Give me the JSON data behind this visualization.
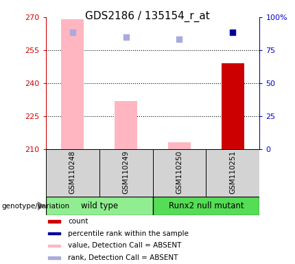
{
  "title": "GDS2186 / 135154_r_at",
  "samples": [
    "GSM110248",
    "GSM110249",
    "GSM110250",
    "GSM110251"
  ],
  "ylim_left": [
    210,
    270
  ],
  "ylim_right": [
    0,
    100
  ],
  "yticks_left": [
    210,
    225,
    240,
    255,
    270
  ],
  "yticks_right": [
    0,
    25,
    50,
    75,
    100
  ],
  "bar_values": [
    269,
    232,
    213,
    249
  ],
  "bar_colors": [
    "#FFB6C1",
    "#FFB6C1",
    "#FFB6C1",
    "#CC0000"
  ],
  "rank_sq_values": [
    263,
    261,
    260,
    263
  ],
  "rank_sq_colors": [
    "#AAAADD",
    "#AAAADD",
    "#AAAADD",
    "#000099"
  ],
  "left_axis_color": "#CC0000",
  "right_axis_color": "#0000CC",
  "grid_lines": [
    255,
    240,
    225
  ],
  "group_wt_color": "#90EE90",
  "group_rm_color": "#55DD55",
  "legend_items": [
    {
      "label": "count",
      "color": "#CC0000"
    },
    {
      "label": "percentile rank within the sample",
      "color": "#000099"
    },
    {
      "label": "value, Detection Call = ABSENT",
      "color": "#FFB6C1"
    },
    {
      "label": "rank, Detection Call = ABSENT",
      "color": "#AAAADD"
    }
  ]
}
